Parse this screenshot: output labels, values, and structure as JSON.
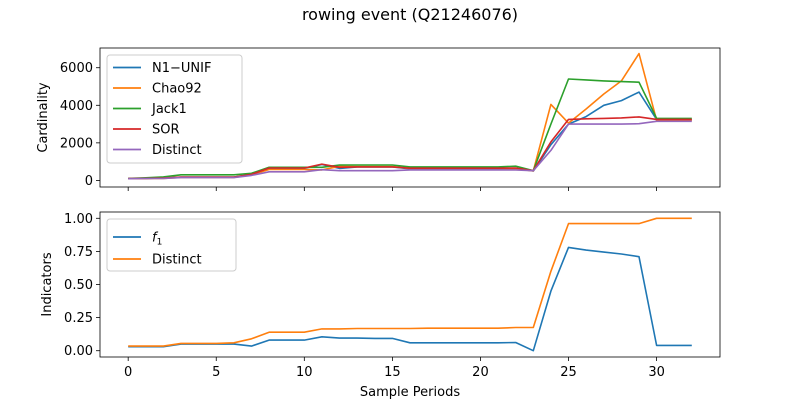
{
  "figure": {
    "title": "rowing event (Q21246076)",
    "xlabel": "Sample Periods"
  },
  "chart_data": [
    {
      "type": "line",
      "ylabel": "Cardinality",
      "xlim": [
        -1.6,
        33.6
      ],
      "ylim": [
        -350,
        7050
      ],
      "xticks": [
        0,
        5,
        10,
        15,
        20,
        25,
        30
      ],
      "yticks": [
        0,
        2000,
        4000,
        6000
      ],
      "yticklabels": [
        "0",
        "2000",
        "4000",
        "6000"
      ],
      "legend": "top-left",
      "x": [
        0,
        1,
        2,
        3,
        4,
        5,
        6,
        7,
        8,
        9,
        10,
        11,
        12,
        13,
        14,
        15,
        16,
        17,
        18,
        19,
        20,
        21,
        22,
        23,
        24,
        25,
        26,
        27,
        28,
        29,
        30,
        31,
        32
      ],
      "series": [
        {
          "name": "N1−UNIF",
          "color": "#1f77b4",
          "values": [
            100,
            110,
            130,
            170,
            170,
            170,
            170,
            330,
            640,
            640,
            640,
            850,
            640,
            720,
            720,
            720,
            620,
            620,
            620,
            620,
            620,
            620,
            640,
            500,
            1900,
            3000,
            3400,
            4000,
            4250,
            4700,
            3250,
            3250,
            3250
          ]
        },
        {
          "name": "Chao92",
          "color": "#ff7f0e",
          "values": [
            90,
            100,
            110,
            160,
            160,
            160,
            160,
            300,
            580,
            580,
            580,
            560,
            750,
            740,
            740,
            740,
            640,
            640,
            640,
            640,
            640,
            640,
            620,
            500,
            4050,
            3050,
            3800,
            4600,
            5300,
            6750,
            3200,
            3200,
            3200
          ]
        },
        {
          "name": "Jack1",
          "color": "#2ca02c",
          "values": [
            110,
            140,
            190,
            300,
            300,
            300,
            300,
            380,
            700,
            700,
            700,
            700,
            820,
            820,
            820,
            820,
            720,
            720,
            720,
            720,
            720,
            720,
            760,
            520,
            3000,
            5400,
            5350,
            5300,
            5260,
            5230,
            3300,
            3300,
            3300
          ]
        },
        {
          "name": "SOR",
          "color": "#d62728",
          "values": [
            100,
            110,
            130,
            180,
            180,
            180,
            180,
            320,
            660,
            660,
            660,
            870,
            700,
            720,
            720,
            720,
            650,
            650,
            650,
            650,
            650,
            650,
            660,
            520,
            2050,
            3250,
            3280,
            3300,
            3330,
            3380,
            3250,
            3250,
            3250
          ]
        },
        {
          "name": "Distinct",
          "color": "#9467bd",
          "values": [
            90,
            100,
            110,
            150,
            150,
            150,
            150,
            270,
            460,
            460,
            460,
            570,
            520,
            520,
            520,
            520,
            560,
            560,
            560,
            560,
            560,
            560,
            560,
            520,
            1600,
            3000,
            3000,
            3000,
            3000,
            3020,
            3150,
            3150,
            3150
          ]
        }
      ]
    },
    {
      "type": "line",
      "ylabel": "Indicators",
      "xlim": [
        -1.6,
        33.6
      ],
      "ylim": [
        -0.0475,
        1.0475
      ],
      "xticks": [
        0,
        5,
        10,
        15,
        20,
        25,
        30
      ],
      "xticklabels": [
        "0",
        "5",
        "10",
        "15",
        "20",
        "25",
        "30"
      ],
      "yticks": [
        0,
        0.25,
        0.5,
        0.75,
        1.0
      ],
      "yticklabels": [
        "0.00",
        "0.25",
        "0.50",
        "0.75",
        "1.00"
      ],
      "legend": "top-left",
      "x": [
        0,
        1,
        2,
        3,
        4,
        5,
        6,
        7,
        8,
        9,
        10,
        11,
        12,
        13,
        14,
        15,
        16,
        17,
        18,
        19,
        20,
        21,
        22,
        23,
        24,
        25,
        26,
        27,
        28,
        29,
        30,
        31,
        32
      ],
      "series": [
        {
          "name": "f1",
          "color": "#1f77b4",
          "values": [
            0.03,
            0.03,
            0.03,
            0.05,
            0.05,
            0.05,
            0.05,
            0.035,
            0.08,
            0.08,
            0.08,
            0.105,
            0.095,
            0.095,
            0.093,
            0.093,
            0.06,
            0.06,
            0.06,
            0.06,
            0.06,
            0.06,
            0.062,
            0.0,
            0.45,
            0.78,
            0.76,
            0.745,
            0.73,
            0.71,
            0.04,
            0.04,
            0.04
          ]
        },
        {
          "name": "Distinct",
          "color": "#ff7f0e",
          "values": [
            0.035,
            0.035,
            0.035,
            0.055,
            0.055,
            0.055,
            0.06,
            0.09,
            0.14,
            0.14,
            0.14,
            0.165,
            0.165,
            0.168,
            0.168,
            0.168,
            0.168,
            0.17,
            0.17,
            0.17,
            0.17,
            0.17,
            0.175,
            0.175,
            0.6,
            0.96,
            0.96,
            0.96,
            0.96,
            0.96,
            1.0,
            1.0,
            1.0
          ]
        }
      ]
    }
  ]
}
